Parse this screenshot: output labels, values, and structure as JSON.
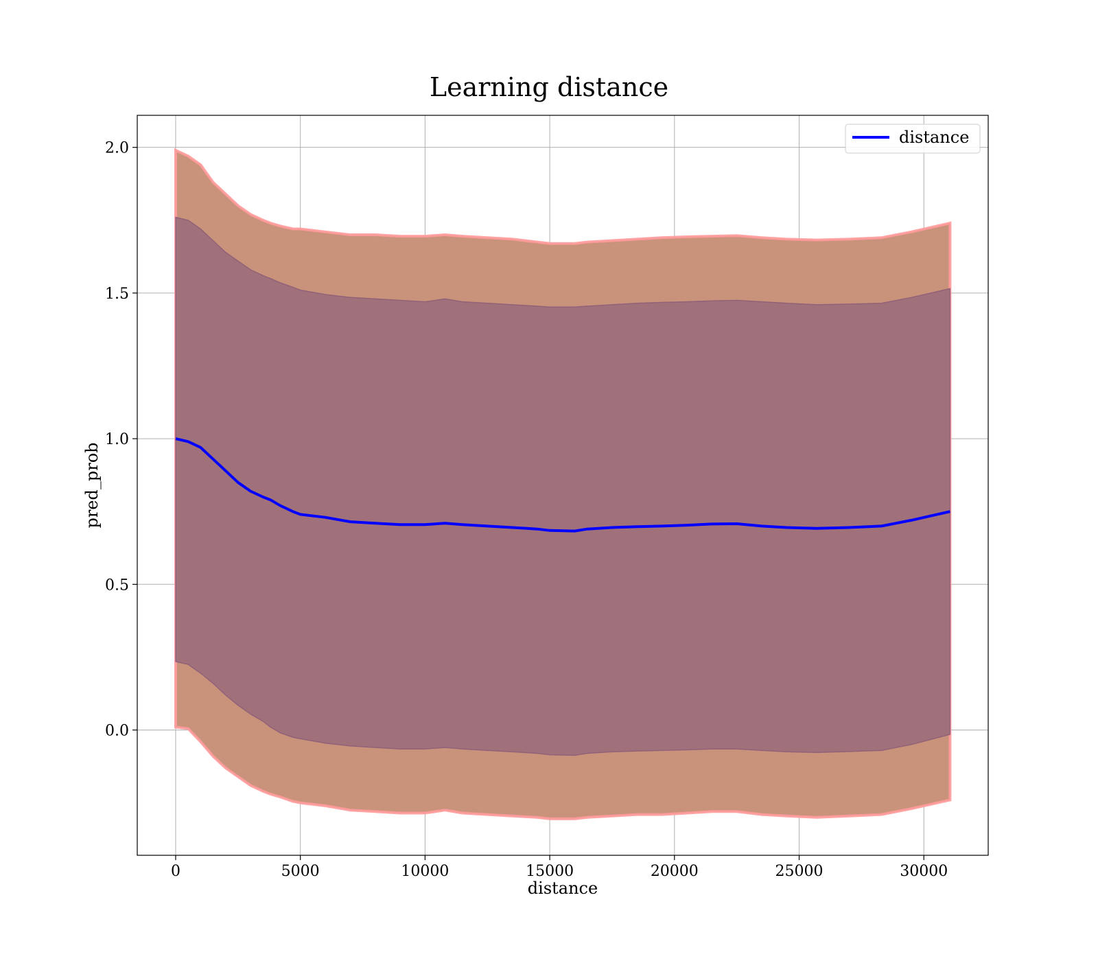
{
  "chart_data": {
    "type": "line",
    "title": "Learning distance",
    "xlabel": "distance",
    "ylabel": "pred_prob",
    "xlim": [
      -1540,
      32580
    ],
    "ylim": [
      -0.43,
      2.11
    ],
    "xticks": [
      0,
      5000,
      10000,
      15000,
      20000,
      25000,
      30000
    ],
    "xtick_labels": [
      "0",
      "5000",
      "10000",
      "15000",
      "20000",
      "25000",
      "30000"
    ],
    "yticks": [
      0.0,
      0.5,
      1.0,
      1.5,
      2.0
    ],
    "ytick_labels": [
      "0.0",
      "0.5",
      "1.0",
      "1.5",
      "2.0"
    ],
    "grid": true,
    "legend": {
      "position": "top-right",
      "entries": [
        "distance"
      ]
    },
    "colors": {
      "line": "#0000ff",
      "outer_band": "#c8937a",
      "outer_band_edge": "#ff9a9a",
      "inner_band": "#a1717b",
      "inner_band_edge": "#8a5a78"
    },
    "series": [
      {
        "name": "distance",
        "x": [
          0,
          500,
          1000,
          1500,
          2000,
          2500,
          3000,
          3500,
          3800,
          4200,
          4700,
          5000,
          6000,
          7000,
          8000,
          9000,
          10000,
          10800,
          11500,
          12500,
          13500,
          14500,
          15000,
          16000,
          16500,
          17500,
          18500,
          19500,
          20500,
          21500,
          22500,
          23500,
          24500,
          25700,
          27000,
          28300,
          29500,
          31050
        ],
        "y": [
          1.0,
          0.99,
          0.97,
          0.93,
          0.89,
          0.85,
          0.82,
          0.8,
          0.79,
          0.77,
          0.75,
          0.74,
          0.73,
          0.715,
          0.71,
          0.705,
          0.705,
          0.71,
          0.705,
          0.7,
          0.695,
          0.69,
          0.685,
          0.683,
          0.69,
          0.695,
          0.698,
          0.7,
          0.703,
          0.707,
          0.708,
          0.7,
          0.695,
          0.692,
          0.695,
          0.7,
          0.72,
          0.75
        ]
      }
    ],
    "bands": [
      {
        "kind": "outer",
        "x": [
          0,
          500,
          1000,
          1500,
          2000,
          2500,
          3000,
          3500,
          3800,
          4200,
          4700,
          5000,
          6000,
          7000,
          8000,
          9000,
          10000,
          10800,
          11500,
          12500,
          13500,
          14500,
          15000,
          16000,
          16500,
          17500,
          18500,
          19500,
          20500,
          21500,
          22500,
          23500,
          24500,
          25700,
          27000,
          28300,
          29500,
          31050
        ],
        "upper": [
          1.99,
          1.97,
          1.94,
          1.88,
          1.84,
          1.8,
          1.77,
          1.75,
          1.74,
          1.73,
          1.72,
          1.72,
          1.71,
          1.7,
          1.7,
          1.695,
          1.695,
          1.7,
          1.695,
          1.69,
          1.685,
          1.675,
          1.67,
          1.67,
          1.675,
          1.68,
          1.685,
          1.69,
          1.693,
          1.695,
          1.697,
          1.69,
          1.685,
          1.682,
          1.685,
          1.69,
          1.71,
          1.74
        ],
        "lower": [
          0.01,
          0.005,
          -0.04,
          -0.09,
          -0.13,
          -0.16,
          -0.19,
          -0.21,
          -0.22,
          -0.23,
          -0.245,
          -0.25,
          -0.26,
          -0.275,
          -0.28,
          -0.285,
          -0.285,
          -0.275,
          -0.285,
          -0.29,
          -0.295,
          -0.3,
          -0.305,
          -0.305,
          -0.3,
          -0.295,
          -0.29,
          -0.29,
          -0.285,
          -0.28,
          -0.28,
          -0.29,
          -0.295,
          -0.3,
          -0.295,
          -0.29,
          -0.27,
          -0.24
        ]
      },
      {
        "kind": "inner",
        "x": [
          0,
          500,
          1000,
          1500,
          2000,
          2500,
          3000,
          3500,
          3800,
          4200,
          4700,
          5000,
          6000,
          7000,
          8000,
          9000,
          10000,
          10800,
          11500,
          12500,
          13500,
          14500,
          15000,
          16000,
          16500,
          17500,
          18500,
          19500,
          20500,
          21500,
          22500,
          23500,
          24500,
          25700,
          27000,
          28300,
          29500,
          31050
        ],
        "upper": [
          1.76,
          1.75,
          1.72,
          1.68,
          1.64,
          1.61,
          1.58,
          1.56,
          1.55,
          1.535,
          1.52,
          1.51,
          1.495,
          1.485,
          1.48,
          1.475,
          1.47,
          1.48,
          1.47,
          1.465,
          1.46,
          1.455,
          1.452,
          1.452,
          1.455,
          1.46,
          1.465,
          1.468,
          1.47,
          1.473,
          1.475,
          1.47,
          1.465,
          1.46,
          1.462,
          1.465,
          1.485,
          1.515
        ],
        "lower": [
          0.235,
          0.225,
          0.195,
          0.16,
          0.12,
          0.085,
          0.055,
          0.03,
          0.01,
          -0.01,
          -0.025,
          -0.03,
          -0.045,
          -0.055,
          -0.06,
          -0.065,
          -0.065,
          -0.06,
          -0.065,
          -0.07,
          -0.075,
          -0.08,
          -0.085,
          -0.087,
          -0.08,
          -0.075,
          -0.072,
          -0.07,
          -0.068,
          -0.065,
          -0.065,
          -0.07,
          -0.075,
          -0.077,
          -0.074,
          -0.07,
          -0.05,
          -0.015
        ]
      }
    ]
  }
}
